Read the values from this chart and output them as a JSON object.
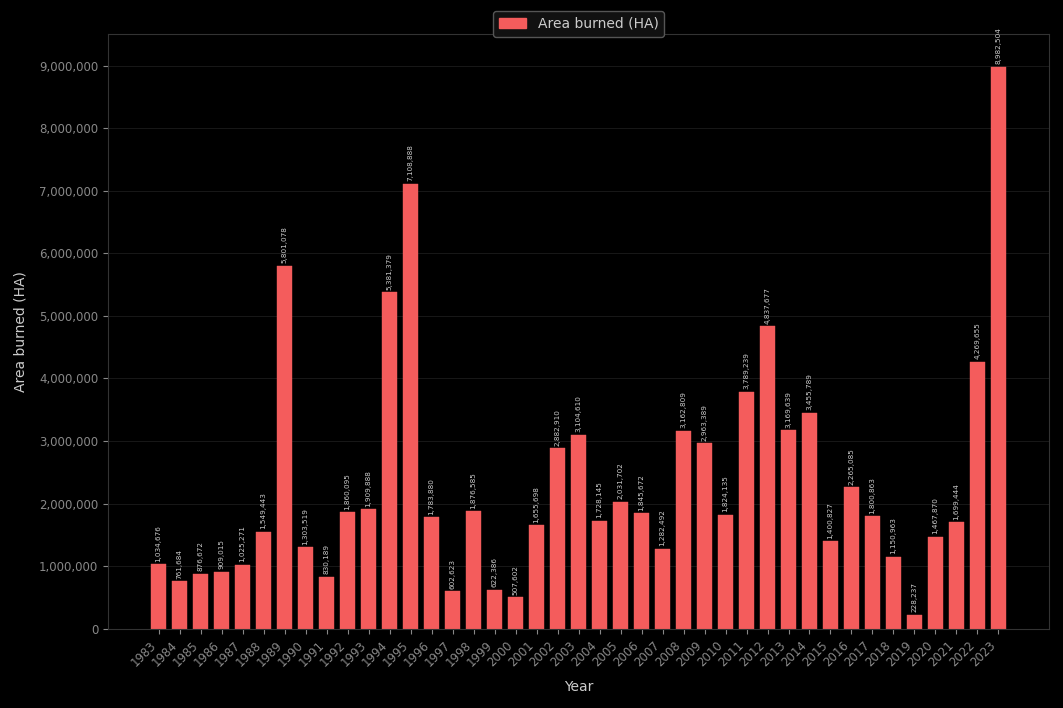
{
  "years": [
    1983,
    1984,
    1985,
    1986,
    1987,
    1988,
    1989,
    1990,
    1991,
    1992,
    1993,
    1994,
    1995,
    1996,
    1997,
    1998,
    1999,
    2000,
    2001,
    2002,
    2003,
    2004,
    2005,
    2006,
    2007,
    2008,
    2009,
    2010,
    2011,
    2012,
    2013,
    2014,
    2015,
    2016,
    2017,
    2018,
    2019,
    2020,
    2021,
    2022,
    2023
  ],
  "values": [
    1034676,
    761684,
    876672,
    909015,
    1025271,
    1549443,
    5801078,
    1303519,
    830189,
    1860095,
    1909888,
    5381379,
    7108888,
    1783880,
    602623,
    1876585,
    622386,
    507602,
    1655698,
    2882910,
    3104610,
    1728145,
    2031702,
    1845672,
    1282492,
    3162809,
    2963389,
    1824135,
    3789239,
    4837677,
    3169639,
    3455789,
    1400827,
    2265085,
    1800863,
    1150963,
    228237,
    1467870,
    1699444,
    4269655,
    8982504
  ],
  "bar_color": "#f45c5c",
  "bar_edge_color": "#f45c5c",
  "legend_label": "Area burned (HA)",
  "legend_patch_color": "#f45c5c",
  "ylabel": "Area burned (HA)",
  "xlabel": "Year",
  "ylim": [
    0,
    9500000
  ],
  "yticks": [
    0,
    1000000,
    2000000,
    3000000,
    4000000,
    5000000,
    6000000,
    7000000,
    8000000,
    9000000
  ],
  "background_color": "#000000",
  "axis_text_color": "#888888",
  "label_text_color": "#cccccc",
  "bar_label_color": "#cccccc",
  "grid_color": "#222222",
  "title": "",
  "bar_width": 0.75,
  "label_fontsize": 5.2,
  "axis_label_fontsize": 10,
  "tick_fontsize": 8.5,
  "legend_facecolor": "#111111",
  "legend_edgecolor": "#555555",
  "legend_fontsize": 10
}
